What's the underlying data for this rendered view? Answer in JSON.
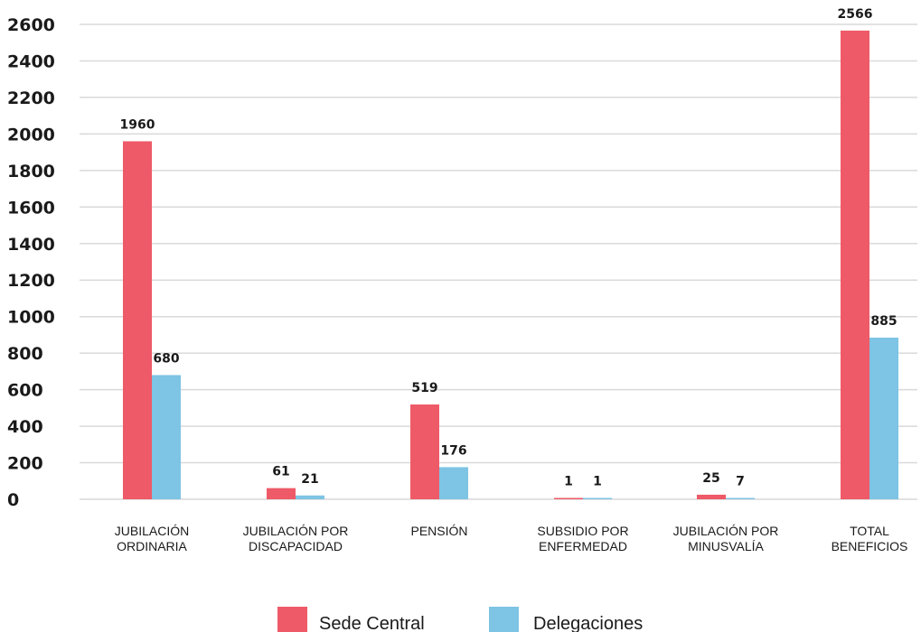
{
  "chart_data": {
    "type": "bar",
    "categories": [
      [
        "JUBILACIÓN",
        "ORDINARIA"
      ],
      [
        "JUBILACIÓN POR",
        "DISCAPACIDAD"
      ],
      [
        "PENSIÓN"
      ],
      [
        "SUBSIDIO POR",
        "ENFERMEDAD"
      ],
      [
        "JUBILACIÓN POR",
        "MINUSVALÍA"
      ],
      [
        "TOTAL",
        "BENEFICIOS"
      ]
    ],
    "series": [
      {
        "name": "Sede Central",
        "color": "#ee5a67",
        "values": [
          1960,
          61,
          519,
          1,
          25,
          2566
        ]
      },
      {
        "name": "Delegaciones",
        "color": "#7ec4e4",
        "values": [
          680,
          21,
          176,
          1,
          7,
          885
        ]
      }
    ],
    "ylim": [
      0,
      2600
    ],
    "yticks": [
      0,
      200,
      400,
      600,
      800,
      1000,
      1200,
      1400,
      1600,
      1800,
      2000,
      2200,
      2400,
      2600
    ],
    "grid": true,
    "legend_position": "bottom-center"
  }
}
